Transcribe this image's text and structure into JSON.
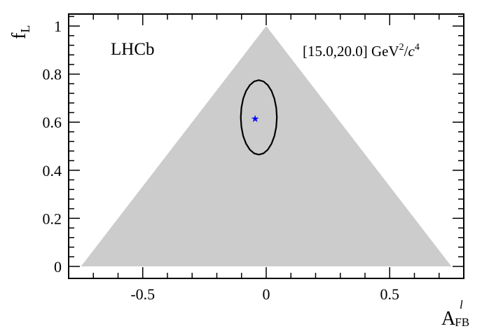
{
  "chart_data": {
    "type": "scatter",
    "experiment_label": "LHCb",
    "bin_label": {
      "prefix": "[15.0,20.0] GeV",
      "exp1": "2",
      "slash": "/",
      "c": "c",
      "exp2": "4"
    },
    "xlabel": {
      "base": "A",
      "sup": "l",
      "sub": "FB"
    },
    "ylabel": {
      "base": "f",
      "sub": "L"
    },
    "xlim": [
      -0.8,
      0.8
    ],
    "ylim": [
      -0.05,
      1.05
    ],
    "xticks": [
      {
        "value": -0.5,
        "label": "-0.5"
      },
      {
        "value": 0,
        "label": "0"
      },
      {
        "value": 0.5,
        "label": "0.5"
      }
    ],
    "yticks": [
      {
        "value": 0,
        "label": "0"
      },
      {
        "value": 0.2,
        "label": "0.2"
      },
      {
        "value": 0.4,
        "label": "0.4"
      },
      {
        "value": 0.6,
        "label": "0.6"
      },
      {
        "value": 0.8,
        "label": "0.8"
      },
      {
        "value": 1,
        "label": "1"
      }
    ],
    "physical_region": {
      "vertices": [
        [
          -0.75,
          0
        ],
        [
          0,
          1
        ],
        [
          0.75,
          0
        ]
      ],
      "color": "#cccccc"
    },
    "best_fit": {
      "x": -0.045,
      "y": 0.615,
      "color": "#0000ff"
    },
    "contour": {
      "center": [
        -0.03,
        0.62
      ],
      "half_width": 0.073,
      "half_height": 0.155,
      "color": "#000000"
    }
  }
}
